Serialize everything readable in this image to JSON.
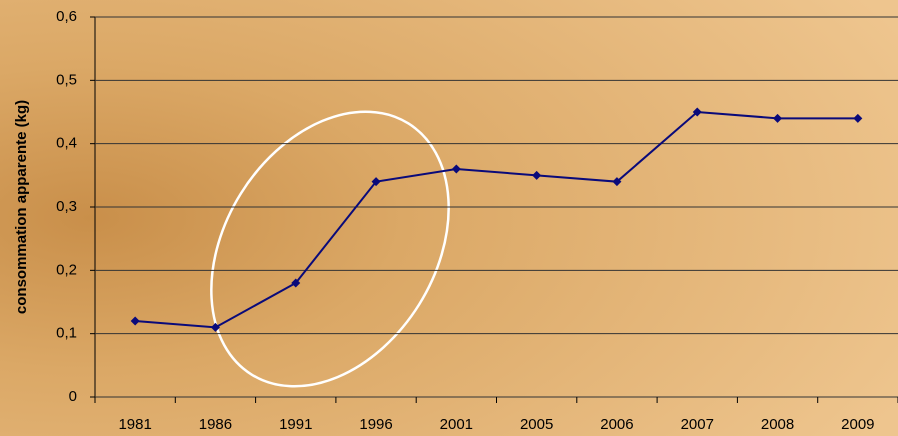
{
  "chart_data": {
    "type": "line",
    "y_label": "consommation apparente (kg)",
    "categories": [
      "1981",
      "1986",
      "1991",
      "1996",
      "2001",
      "2005",
      "2006",
      "2007",
      "2008",
      "2009"
    ],
    "series": [
      {
        "color": "#0a0a7a",
        "values": [
          0.12,
          0.11,
          0.18,
          0.34,
          0.36,
          0.35,
          0.34,
          0.45,
          0.44,
          0.44
        ]
      }
    ],
    "ylim": [
      0,
      0.6
    ],
    "yticks": [
      0,
      {
        "value": 0.1,
        "label": "0,1"
      },
      {
        "value": 0.2,
        "label": "0,2"
      },
      {
        "value": 0.3,
        "label": "0,3"
      },
      {
        "value": 0.4,
        "label": "0,4"
      },
      {
        "value": 0.5,
        "label": "0,5"
      },
      {
        "value": 0.6,
        "label": "0,6"
      }
    ],
    "grid": true
  }
}
